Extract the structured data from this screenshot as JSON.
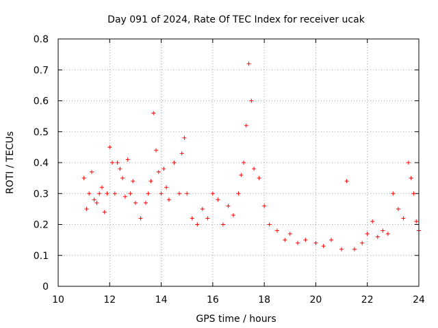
{
  "chart_data": {
    "type": "scatter",
    "title": "Day 091 of 2024, Rate Of TEC Index for receiver ucak",
    "xlabel": "GPS time / hours",
    "ylabel": "ROTI / TECUs",
    "xlim": [
      10,
      24
    ],
    "ylim": [
      0,
      0.8
    ],
    "x_ticks": [
      "10",
      "12",
      "14",
      "16",
      "18",
      "20",
      "22",
      "24"
    ],
    "y_ticks": [
      "0",
      "0.1",
      "0.2",
      "0.3",
      "0.4",
      "0.5",
      "0.6",
      "0.7",
      "0.8"
    ],
    "grid": true,
    "marker": "+",
    "color": "#ff0000",
    "series": [
      {
        "x": [
          11.0,
          11.1,
          11.2,
          11.3,
          11.4,
          11.5,
          11.6,
          11.7,
          11.8,
          11.9,
          12.0,
          12.1,
          12.2,
          12.3,
          12.4,
          12.5,
          12.6,
          12.7,
          12.8,
          12.9,
          13.0,
          13.2,
          13.4,
          13.5,
          13.6,
          13.7,
          13.8,
          13.9,
          14.0,
          14.1,
          14.2,
          14.3,
          14.5,
          14.7,
          14.8,
          14.9,
          15.0,
          15.2,
          15.4,
          15.6,
          15.8,
          16.0,
          16.2,
          16.4,
          16.6,
          16.8,
          17.0,
          17.1,
          17.2,
          17.3,
          17.4,
          17.5,
          17.6,
          17.8,
          18.0,
          18.2,
          18.5,
          18.8,
          19.0,
          19.3,
          19.6,
          20.0,
          20.3,
          20.6,
          21.0,
          21.2,
          21.5,
          21.8,
          22.0,
          22.2,
          22.4,
          22.6,
          22.8,
          23.0,
          23.2,
          23.4,
          23.6,
          23.7,
          23.8,
          23.9,
          24.0
        ],
        "y": [
          0.35,
          0.25,
          0.3,
          0.37,
          0.28,
          0.27,
          0.3,
          0.32,
          0.24,
          0.3,
          0.45,
          0.4,
          0.3,
          0.4,
          0.38,
          0.35,
          0.29,
          0.41,
          0.3,
          0.34,
          0.27,
          0.22,
          0.27,
          0.3,
          0.34,
          0.56,
          0.44,
          0.37,
          0.3,
          0.38,
          0.32,
          0.28,
          0.4,
          0.3,
          0.43,
          0.48,
          0.3,
          0.22,
          0.2,
          0.25,
          0.22,
          0.3,
          0.28,
          0.2,
          0.26,
          0.23,
          0.3,
          0.36,
          0.4,
          0.52,
          0.72,
          0.6,
          0.38,
          0.35,
          0.26,
          0.2,
          0.18,
          0.15,
          0.17,
          0.14,
          0.15,
          0.14,
          0.13,
          0.15,
          0.12,
          0.34,
          0.12,
          0.14,
          0.17,
          0.21,
          0.16,
          0.18,
          0.17,
          0.3,
          0.25,
          0.22,
          0.4,
          0.35,
          0.3,
          0.21,
          0.18
        ]
      }
    ]
  }
}
